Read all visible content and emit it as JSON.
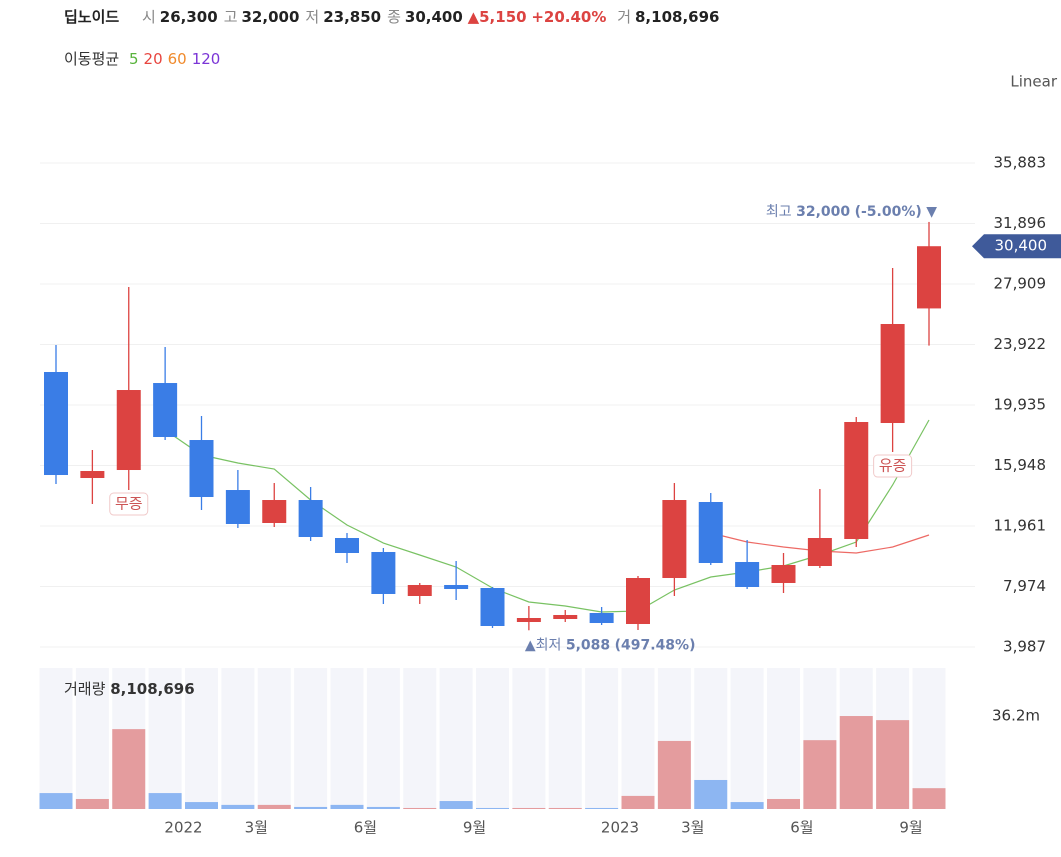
{
  "chart_data": {
    "type": "candlestick",
    "title": "딥노이드",
    "header": [
      {
        "label": "시",
        "value": "26,300"
      },
      {
        "label": "고",
        "value": "32,000"
      },
      {
        "label": "저",
        "value": "23,850"
      },
      {
        "label": "종",
        "value": "30,400"
      }
    ],
    "change": "5,150",
    "change_pct": "+20.40%",
    "volume_header": {
      "label": "거",
      "value": "8,108,696"
    },
    "ma_title": "이동평균",
    "scale_label": "Linear",
    "categories": [
      null,
      null,
      null,
      null,
      "2022",
      null,
      "3월",
      null,
      null,
      "6월",
      null,
      null,
      "9월",
      null,
      null,
      null,
      "2023",
      null,
      "3월",
      null,
      null,
      "6월",
      null,
      null,
      "9월"
    ],
    "open": [
      22110,
      15124,
      15651,
      21384,
      17628,
      14333,
      12159,
      13674,
      11170,
      10248,
      7348,
      8073,
      7875,
      5634,
      5832,
      6228,
      5502,
      8534,
      13543,
      9588,
      8205,
      9325,
      11104,
      18749,
      26300
    ],
    "high": [
      23889,
      16969,
      27711,
      23757,
      19210,
      15651,
      14794,
      14531,
      11500,
      10511,
      8205,
      9654,
      7941,
      6689,
      6425,
      6623,
      8666,
      14794,
      14136,
      11038,
      10182,
      14399,
      19144,
      28963,
      32000
    ],
    "low": [
      14729,
      13411,
      14333,
      17628,
      13015,
      11829,
      11895,
      10972,
      9523,
      6821,
      6821,
      7084,
      5239,
      5088,
      5634,
      5437,
      5107,
      7348,
      9391,
      7809,
      7545,
      9193,
      10577,
      16837,
      23850
    ],
    "close": [
      15322,
      15585,
      20923,
      17826,
      13872,
      12093,
      13674,
      11236,
      10182,
      7480,
      8073,
      7809,
      5371,
      5898,
      6096,
      5568,
      8534,
      13674,
      9523,
      7941,
      9391,
      11170,
      18815,
      25273,
      30400
    ],
    "up_color": "#dc4341",
    "down_color": "#3a7de6",
    "moving_averages": [
      {
        "name": "5",
        "color": "#58b33c",
        "values": [
          null,
          null,
          null,
          18287,
          16640,
          16112,
          15717,
          13674,
          12027,
          10840,
          10050,
          9259,
          7875,
          6953,
          6689,
          6293,
          6360,
          7743,
          8600,
          8930,
          9325,
          10050,
          10906,
          14663,
          18946
        ]
      },
      {
        "name": "20",
        "color": "#e8453f",
        "values": [
          null,
          null,
          null,
          null,
          null,
          null,
          null,
          null,
          null,
          null,
          null,
          null,
          null,
          null,
          null,
          null,
          null,
          null,
          11500,
          10906,
          10577,
          10313,
          10182,
          10577,
          11368
        ]
      },
      {
        "name": "60",
        "color": "#f08a2c"
      },
      {
        "name": "120",
        "color": "#7b35d6"
      }
    ],
    "ylim": [
      3130,
      40036
    ],
    "yticks": [
      {
        "value": 3987,
        "label": "3,987"
      },
      {
        "value": 7974,
        "label": "7,974"
      },
      {
        "value": 11961,
        "label": "11,961"
      },
      {
        "value": 15948,
        "label": "15,948"
      },
      {
        "value": 19935,
        "label": "19,935"
      },
      {
        "value": 23922,
        "label": "23,922"
      },
      {
        "value": 27909,
        "label": "27,909"
      },
      {
        "value": 31896,
        "label": "31,896"
      },
      {
        "value": 35883,
        "label": "35,883"
      }
    ],
    "grid": true,
    "last_price_label": "30,400",
    "high_annotation": {
      "label": "최고",
      "value": "32,000",
      "pct": "(-5.00%)"
    },
    "low_annotation": {
      "label": "최저",
      "value": "5,088",
      "pct": "(497.48%)"
    },
    "events": [
      null,
      null,
      "무증",
      null,
      null,
      null,
      null,
      null,
      null,
      null,
      null,
      null,
      null,
      null,
      null,
      null,
      null,
      null,
      null,
      null,
      null,
      null,
      null,
      "유증",
      null
    ],
    "volume": {
      "name": "거래량",
      "value_label": "8,108,696",
      "values": [
        6.2,
        3.9,
        31.1,
        6.2,
        2.7,
        1.6,
        1.6,
        0.8,
        1.6,
        0.8,
        0.4,
        3.1,
        0.4,
        0.4,
        0.4,
        0.4,
        5.1,
        26.5,
        11.3,
        2.7,
        3.9,
        26.8,
        36.2,
        34.6,
        8.108696
      ],
      "ylim": [
        0,
        54.9
      ],
      "yticks": [
        {
          "value": 36.2,
          "label": "36.2m"
        }
      ],
      "up_color": "#e49c9e",
      "down_color": "#8db6f2"
    }
  }
}
